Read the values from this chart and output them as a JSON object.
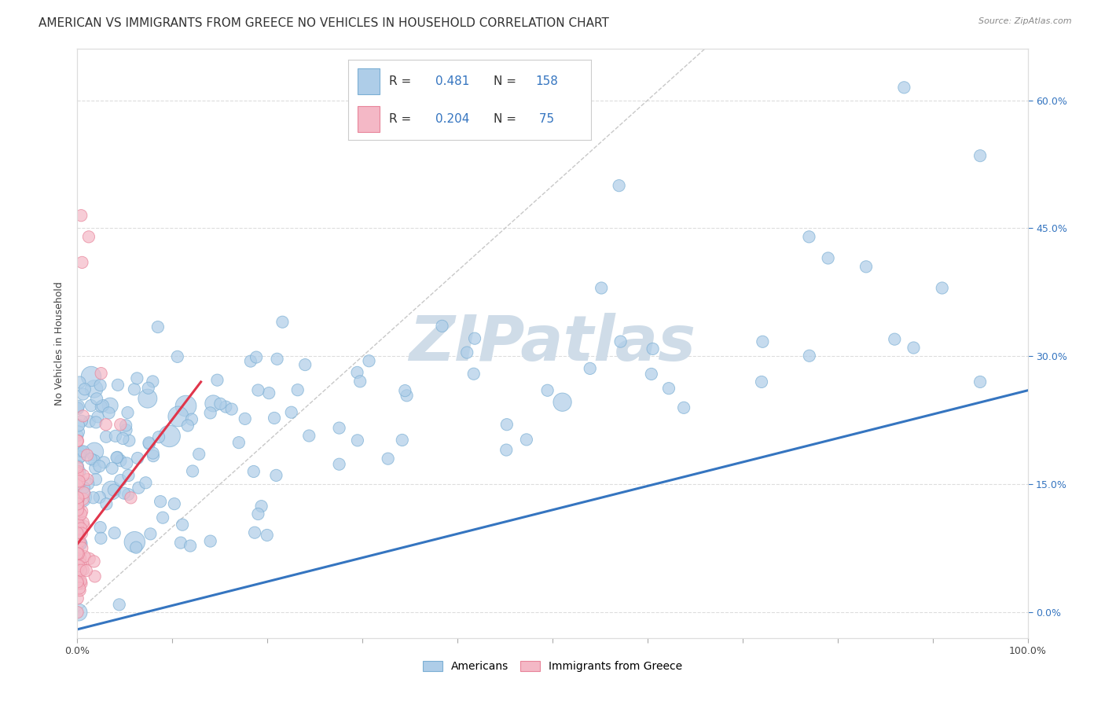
{
  "title": "AMERICAN VS IMMIGRANTS FROM GREECE NO VEHICLES IN HOUSEHOLD CORRELATION CHART",
  "source": "Source: ZipAtlas.com",
  "ylabel": "No Vehicles in Household",
  "xlim": [
    0,
    1.0
  ],
  "ylim": [
    -0.03,
    0.66
  ],
  "y_ticks": [
    0.0,
    0.15,
    0.3,
    0.45,
    0.6
  ],
  "right_y_tick_labels": [
    "0.0%",
    "15.0%",
    "30.0%",
    "45.0%",
    "60.0%"
  ],
  "blue_edge": "#7bafd4",
  "blue_fill": "#aecde8",
  "pink_edge": "#e8849a",
  "pink_fill": "#f4b8c6",
  "trend_blue": "#3575c0",
  "trend_pink": "#e0354b",
  "diag_color": "#c8c8c8",
  "grid_color": "#dddddd",
  "watermark_text": "ZIPatlas",
  "watermark_color": "#cfdce8",
  "title_fontsize": 11,
  "axis_fontsize": 9,
  "tick_color": "#3575c0",
  "seed": 7,
  "blue_n": 158,
  "pink_n": 75,
  "blue_R": 0.481,
  "pink_R": 0.204,
  "dot_size": 120
}
